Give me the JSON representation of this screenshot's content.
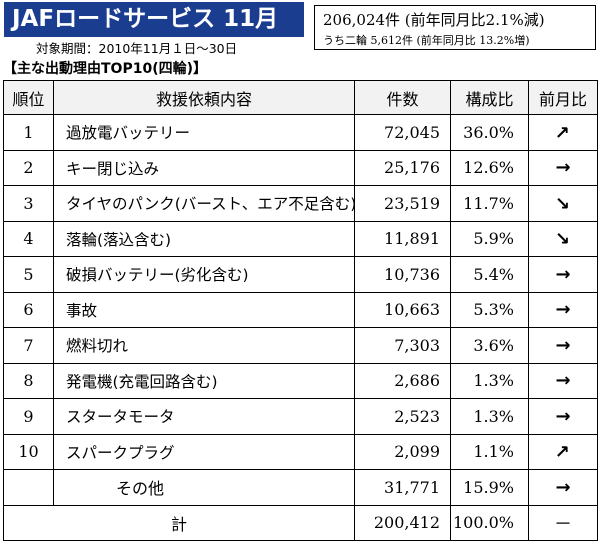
{
  "header": {
    "title": "JAFロードサービス 11月",
    "period": "対象期間：2010年11月１日～30日",
    "title_bg_color": "#1a3d8f"
  },
  "stats": {
    "main": "206,024件 (前年同月比2.1%減)",
    "sub": "うち二輪 5,612件 (前年同月比 13.2%増)"
  },
  "section_title": "【主な出動理由TOP10(四輪)】",
  "table": {
    "headers": {
      "rank": "順位",
      "reason": "救援依頼内容",
      "count": "件数",
      "ratio": "構成比",
      "trend": "前月比"
    },
    "rows": [
      {
        "rank": "1",
        "reason": "過放電バッテリー",
        "count": "72,045",
        "ratio": "36.0%",
        "trend": "up"
      },
      {
        "rank": "2",
        "reason": "キー閉じ込み",
        "count": "25,176",
        "ratio": "12.6%",
        "trend": "flat"
      },
      {
        "rank": "3",
        "reason": "タイヤのパンク(バースト、エア不足含む)",
        "count": "23,519",
        "ratio": "11.7%",
        "trend": "down"
      },
      {
        "rank": "4",
        "reason": "落輪(落込含む)",
        "count": "11,891",
        "ratio": "5.9%",
        "trend": "down"
      },
      {
        "rank": "5",
        "reason": "破損バッテリー(劣化含む)",
        "count": "10,736",
        "ratio": "5.4%",
        "trend": "flat"
      },
      {
        "rank": "6",
        "reason": "事故",
        "count": "10,663",
        "ratio": "5.3%",
        "trend": "flat"
      },
      {
        "rank": "7",
        "reason": "燃料切れ",
        "count": "7,303",
        "ratio": "3.6%",
        "trend": "flat"
      },
      {
        "rank": "8",
        "reason": "発電機(充電回路含む)",
        "count": "2,686",
        "ratio": "1.3%",
        "trend": "flat"
      },
      {
        "rank": "9",
        "reason": "スタータモータ",
        "count": "2,523",
        "ratio": "1.3%",
        "trend": "flat"
      },
      {
        "rank": "10",
        "reason": "スパークプラグ",
        "count": "2,099",
        "ratio": "1.1%",
        "trend": "up"
      }
    ],
    "other": {
      "label": "その他",
      "count": "31,771",
      "ratio": "15.9%",
      "trend": "flat"
    },
    "total": {
      "label": "計",
      "count": "200,412",
      "ratio": "100.0%",
      "trend_text": "－"
    }
  }
}
